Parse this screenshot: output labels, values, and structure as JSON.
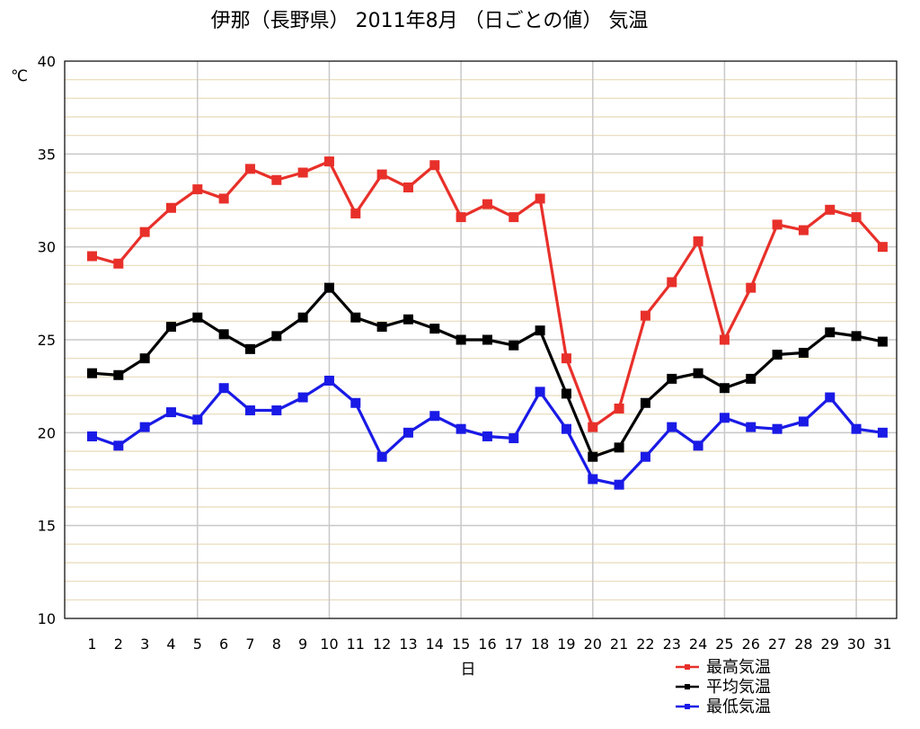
{
  "chart_data": {
    "type": "line",
    "title": "伊那（長野県） 2011年8月 （日ごとの値） 気温",
    "xlabel": "日",
    "ylabel": "℃",
    "ylim": [
      10,
      40
    ],
    "yticks": [
      10,
      15,
      20,
      25,
      30,
      35,
      40
    ],
    "y_minor_step": 1,
    "x": [
      1,
      2,
      3,
      4,
      5,
      6,
      7,
      8,
      9,
      10,
      11,
      12,
      13,
      14,
      15,
      16,
      17,
      18,
      19,
      20,
      21,
      22,
      23,
      24,
      25,
      26,
      27,
      28,
      29,
      30,
      31
    ],
    "x_major_gridlines": [
      5,
      10,
      15,
      20,
      25,
      30
    ],
    "grid": true,
    "legend_position": "bottom-right",
    "series": [
      {
        "name": "最高気温",
        "color": "#e8302a",
        "values": [
          29.5,
          29.1,
          30.8,
          32.1,
          33.1,
          32.6,
          34.2,
          33.6,
          34.0,
          34.6,
          31.8,
          33.9,
          33.2,
          34.4,
          31.6,
          32.3,
          31.6,
          32.6,
          24.0,
          20.3,
          21.3,
          26.3,
          28.1,
          30.3,
          25.0,
          27.8,
          31.2,
          30.9,
          32.0,
          31.6,
          30.0
        ]
      },
      {
        "name": "平均気温",
        "color": "#000000",
        "values": [
          23.2,
          23.1,
          24.0,
          25.7,
          26.2,
          25.3,
          24.5,
          25.2,
          26.2,
          27.8,
          26.2,
          25.7,
          26.1,
          25.6,
          25.0,
          25.0,
          24.7,
          25.5,
          22.1,
          18.7,
          19.2,
          21.6,
          22.9,
          23.2,
          22.4,
          22.9,
          24.2,
          24.3,
          25.4,
          25.2,
          24.9
        ]
      },
      {
        "name": "最低気温",
        "color": "#1a1ae6",
        "values": [
          19.8,
          19.3,
          20.3,
          21.1,
          20.7,
          22.4,
          21.2,
          21.2,
          21.9,
          22.8,
          21.6,
          18.7,
          20.0,
          20.9,
          20.2,
          19.8,
          19.7,
          22.2,
          20.2,
          17.5,
          17.2,
          18.7,
          20.3,
          19.3,
          20.8,
          20.3,
          20.2,
          20.6,
          21.9,
          20.2,
          20.0
        ]
      }
    ]
  }
}
